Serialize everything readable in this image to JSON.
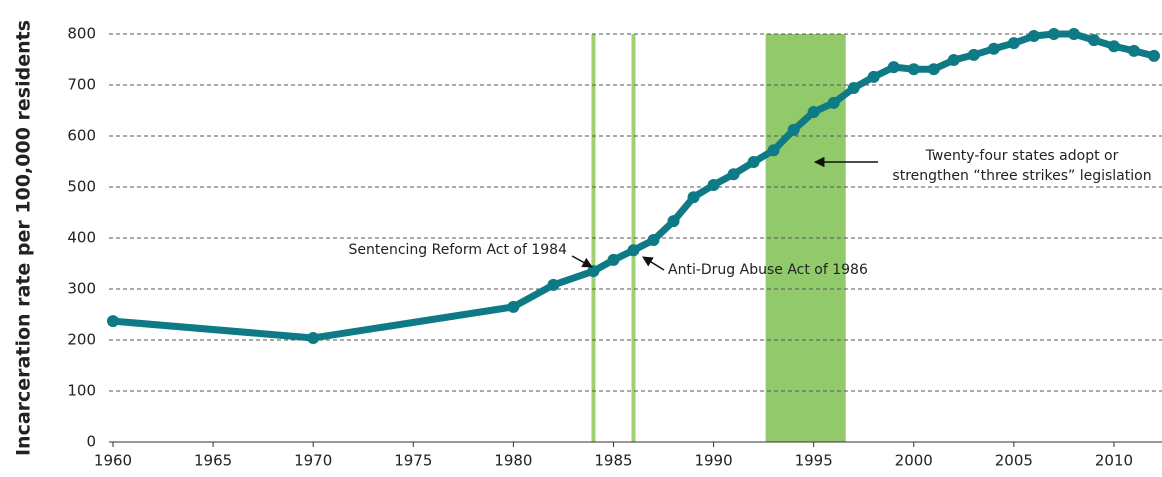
{
  "chart_data": {
    "type": "line",
    "ylabel": "Incarceration rate per 100,000 residents",
    "x": [
      1960,
      1970,
      1980,
      1982,
      1984,
      1985,
      1986,
      1987,
      1988,
      1989,
      1990,
      1991,
      1992,
      1993,
      1994,
      1995,
      1996,
      1997,
      1998,
      1999,
      2000,
      2001,
      2002,
      2003,
      2004,
      2005,
      2006,
      2007,
      2008,
      2009,
      2010,
      2011,
      2012
    ],
    "series": [
      {
        "color": "#0e7a85",
        "values": [
          237,
          204,
          265,
          308,
          335,
          357,
          376,
          396,
          433,
          480,
          504,
          525,
          549,
          572,
          612,
          647,
          665,
          694,
          716,
          735,
          731,
          731,
          749,
          759,
          771,
          782,
          796,
          800,
          800,
          788,
          776,
          767,
          757
        ]
      }
    ],
    "xlim": [
      1959.8,
      2012.4
    ],
    "xticks": [
      1960,
      1965,
      1970,
      1975,
      1980,
      1985,
      1990,
      1995,
      2000,
      2005,
      2010
    ],
    "ylim": [
      0,
      800
    ],
    "yticks": [
      0,
      100,
      200,
      300,
      400,
      500,
      600,
      700,
      800
    ],
    "grid": true,
    "spans": [
      {
        "xmin": 1983.9,
        "xmax": 1984.1,
        "color": "#9fd172"
      },
      {
        "xmin": 1985.9,
        "xmax": 1986.1,
        "color": "#9fd172"
      },
      {
        "xmin": 1992.6,
        "xmax": 1996.6,
        "color": "#92c96a"
      }
    ],
    "annotations": [
      {
        "lines": [
          "Sentencing Reform Act of 1984"
        ]
      },
      {
        "lines": [
          "Anti-Drug Abuse Act of 1986"
        ]
      },
      {
        "lines": [
          "Twenty-four states adopt or",
          "strengthen “three strikes” legislation"
        ]
      }
    ]
  }
}
